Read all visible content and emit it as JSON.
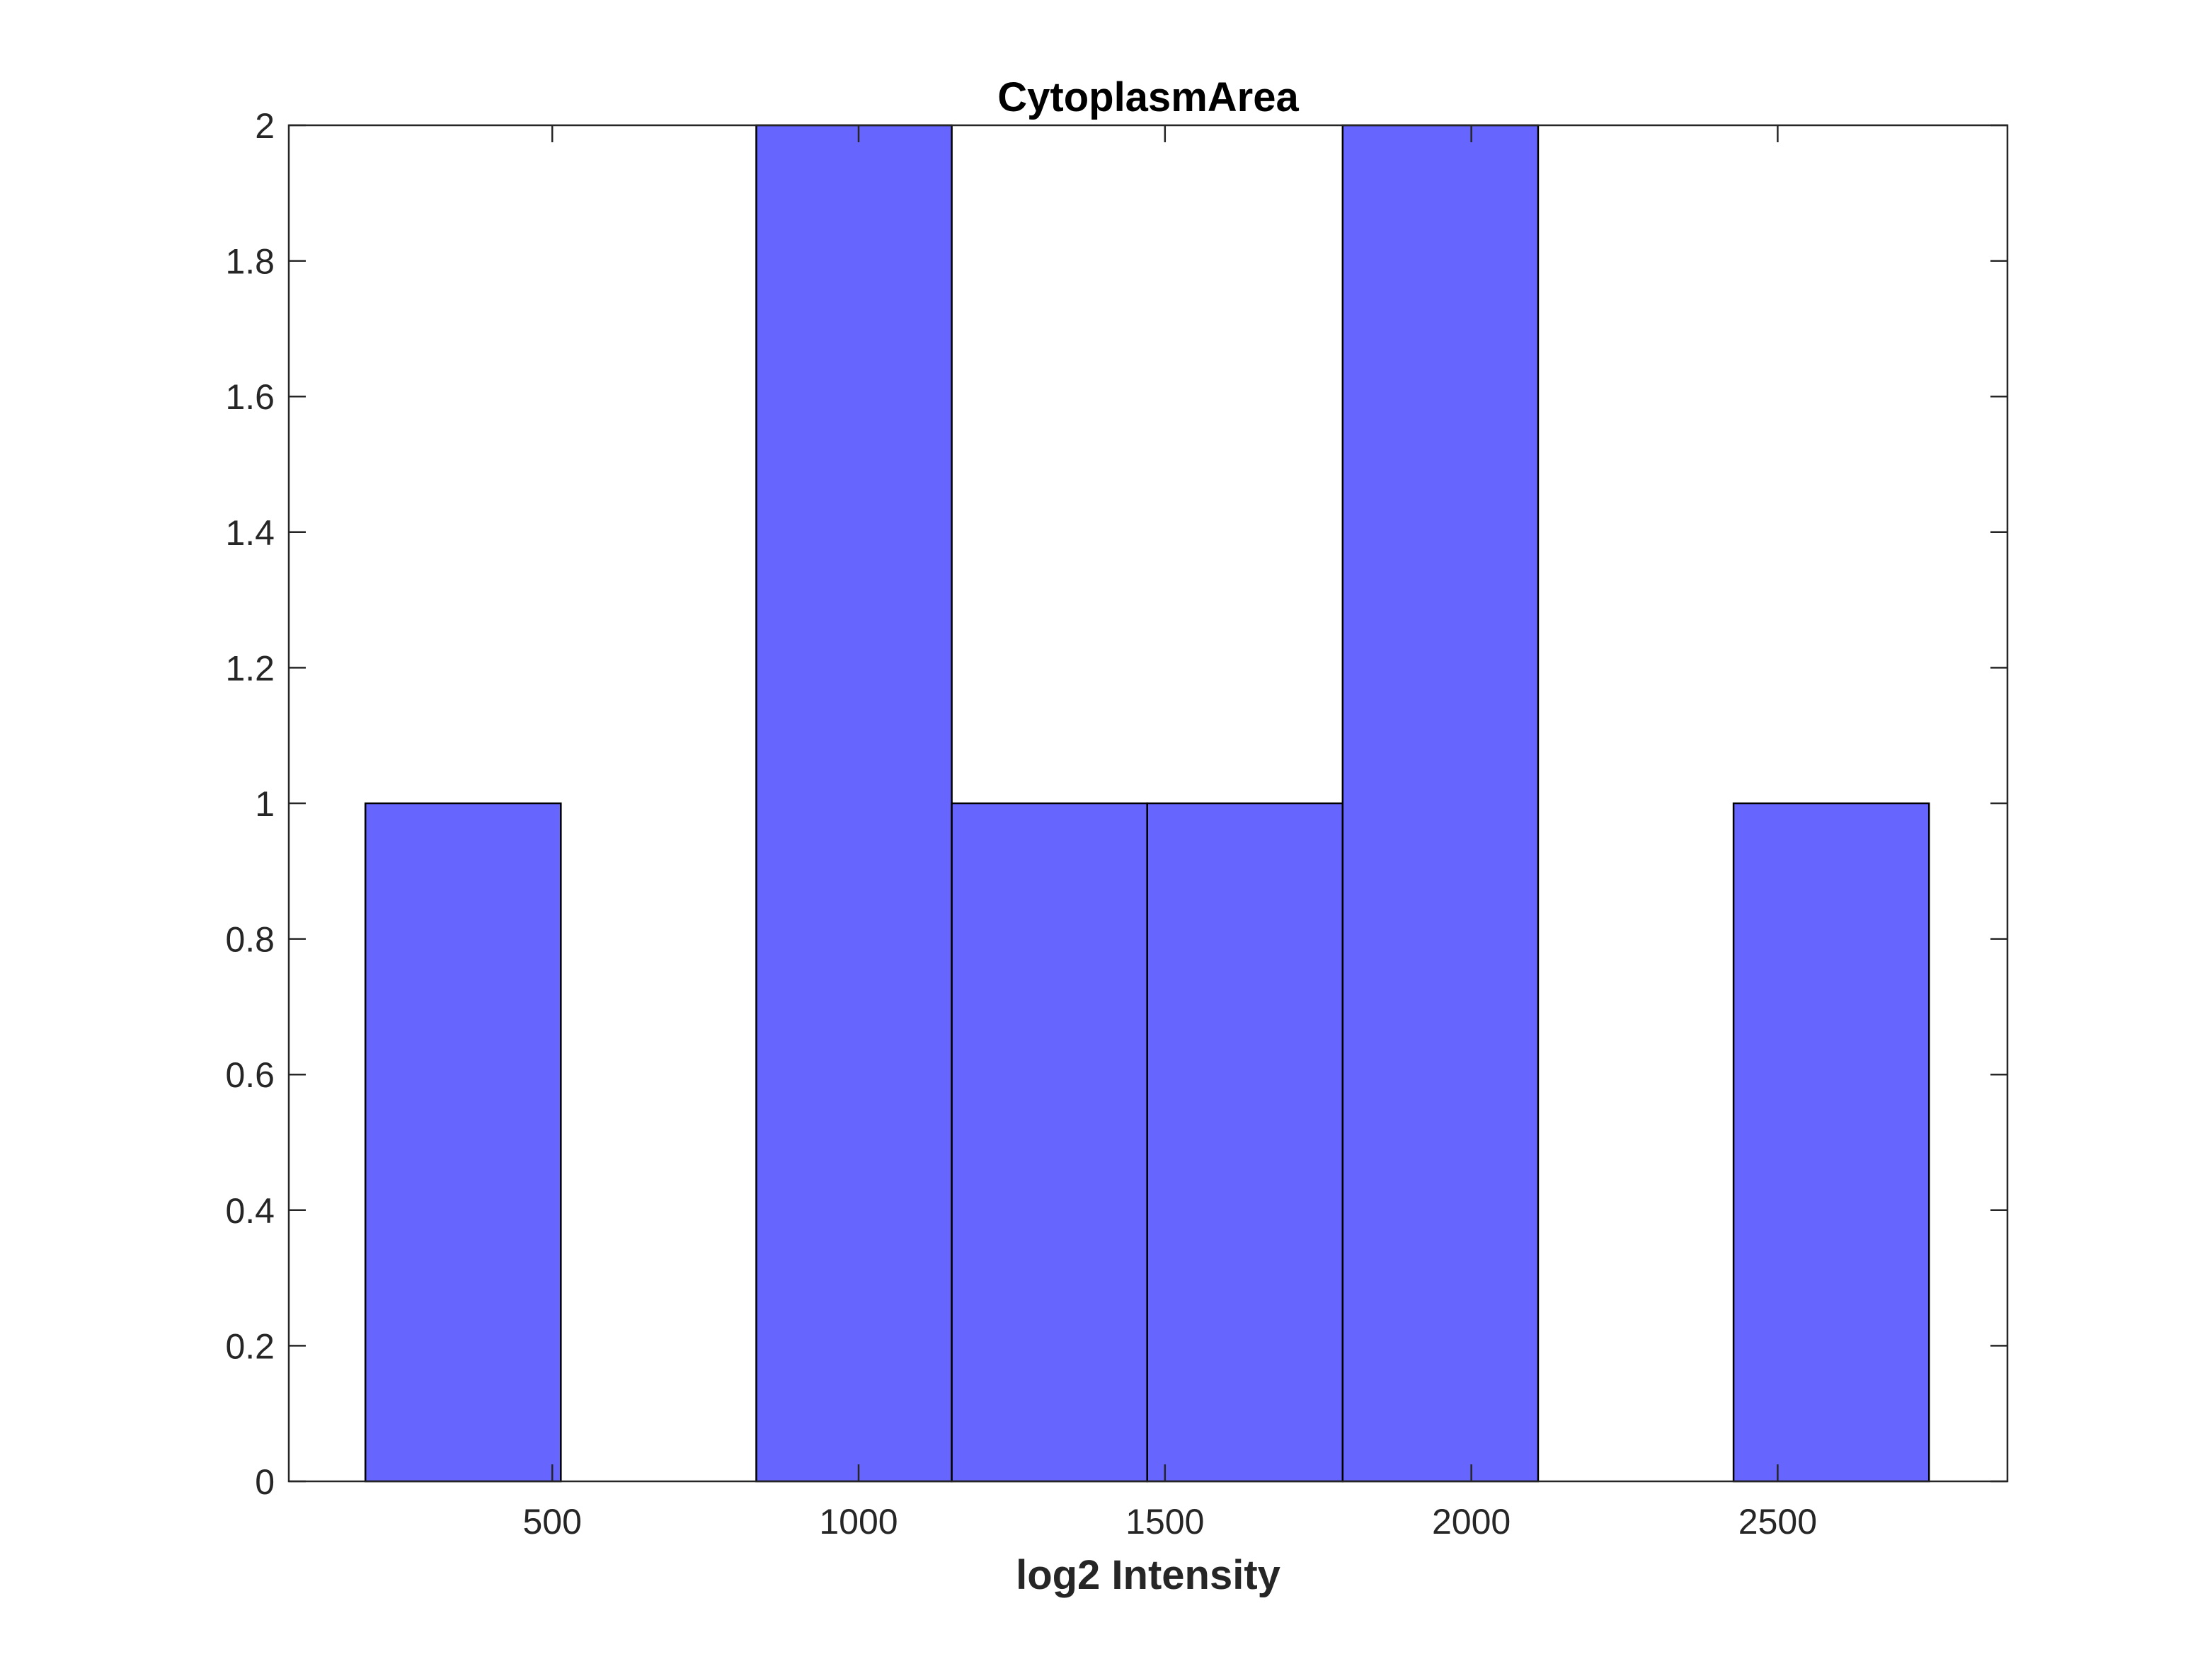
{
  "chart_data": {
    "type": "bar",
    "title": "CytoplasmArea",
    "xlabel": "log2 Intensity",
    "ylabel": "",
    "bin_edges": [
      195,
      514,
      833,
      1152,
      1471,
      1790,
      2109,
      2428,
      2747
    ],
    "values": [
      1,
      0,
      2,
      1,
      1,
      2,
      0,
      1
    ],
    "xlim": [
      70,
      2875
    ],
    "ylim": [
      0,
      2
    ],
    "xticks": [
      500,
      1000,
      1500,
      2000,
      2500
    ],
    "yticks": [
      0,
      0.2,
      0.4,
      0.6,
      0.8,
      1,
      1.2,
      1.4,
      1.6,
      1.8,
      2
    ],
    "ytick_labels": [
      "0",
      "0.2",
      "0.4",
      "0.6",
      "0.8",
      "1",
      "1.2",
      "1.4",
      "1.6",
      "1.8",
      "2"
    ],
    "grid": false,
    "bar_color": "#6666ff",
    "edge_color": "#000000"
  }
}
